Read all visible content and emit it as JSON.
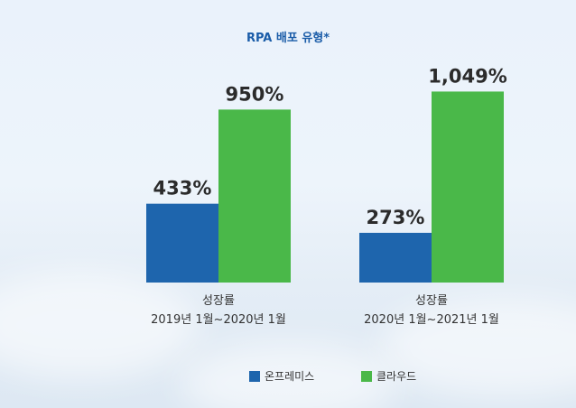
{
  "chart_data": {
    "type": "bar",
    "title": "RPA 배포 유형*",
    "categories": [
      [
        "성장률",
        "2019년 1월~2020년 1월"
      ],
      [
        "성장률",
        "2020년 1월~2021년 1월"
      ]
    ],
    "series": [
      {
        "name": "온프레미스",
        "color": "#1e65ad",
        "values": [
          433,
          273
        ],
        "labels": [
          "433%",
          "273%"
        ]
      },
      {
        "name": "클라우드",
        "color": "#4ab849",
        "values": [
          950,
          1049
        ],
        "labels": [
          "950%",
          "1,049%"
        ]
      }
    ],
    "ylim": [
      0,
      1180
    ],
    "grid": false,
    "legend_position": "bottom"
  }
}
